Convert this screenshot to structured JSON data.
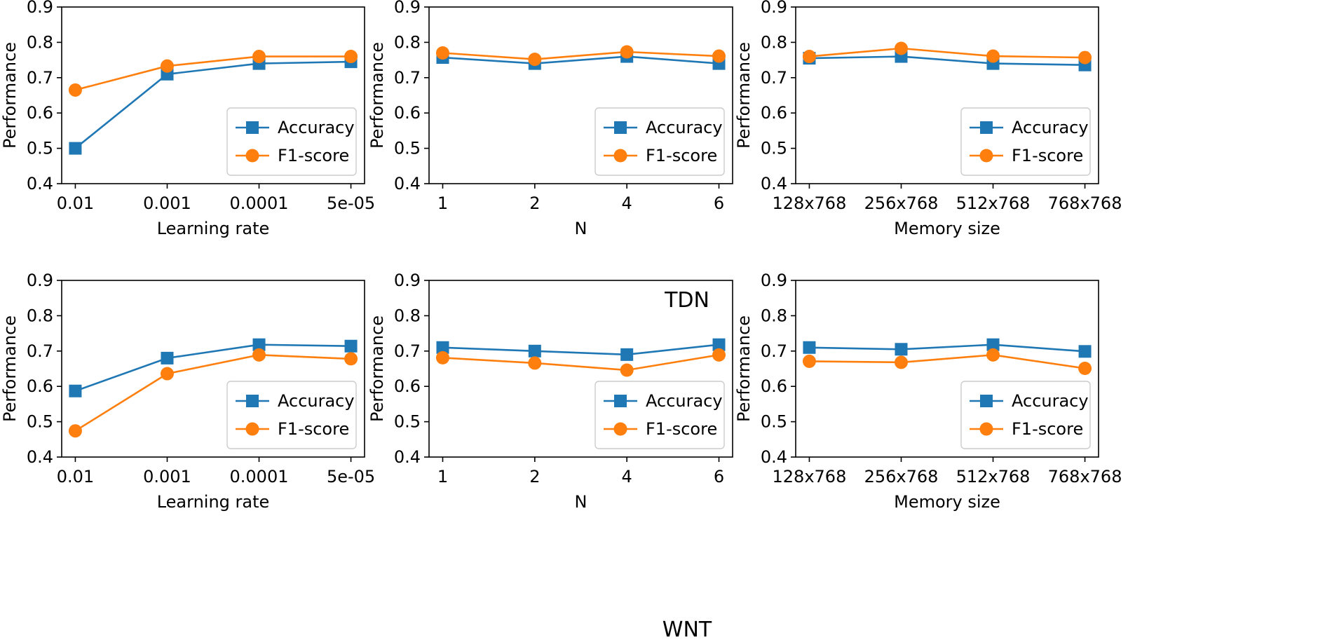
{
  "colors": {
    "accuracy": "#1f77b4",
    "f1": "#ff7f0e"
  },
  "group_labels": [
    "TDN",
    "WNT"
  ],
  "chart_data": [
    {
      "type": "line",
      "x": [
        "0.01",
        "0.001",
        "0.0001",
        "5e-05"
      ],
      "xlabel": "Learning rate",
      "ylabel": "Performance",
      "ylim": [
        0.4,
        0.9
      ],
      "yticks": [
        "0.4",
        "0.5",
        "0.6",
        "0.7",
        "0.8",
        "0.9"
      ],
      "legend": "lower-right",
      "grid": false,
      "series": [
        {
          "name": "Accuracy",
          "marker": "square",
          "values": [
            0.5,
            0.71,
            0.74,
            0.745
          ]
        },
        {
          "name": "F1-score",
          "marker": "circle",
          "values": [
            0.665,
            0.733,
            0.76,
            0.76
          ]
        }
      ]
    },
    {
      "type": "line",
      "x": [
        "1",
        "2",
        "4",
        "6"
      ],
      "xlabel": "N",
      "ylabel": "Performance",
      "ylim": [
        0.4,
        0.9
      ],
      "yticks": [
        "0.4",
        "0.5",
        "0.6",
        "0.7",
        "0.8",
        "0.9"
      ],
      "legend": "lower-right",
      "grid": false,
      "series": [
        {
          "name": "Accuracy",
          "marker": "square",
          "values": [
            0.757,
            0.74,
            0.76,
            0.74
          ]
        },
        {
          "name": "F1-score",
          "marker": "circle",
          "values": [
            0.77,
            0.752,
            0.773,
            0.761
          ]
        }
      ]
    },
    {
      "type": "line",
      "x": [
        "128x768",
        "256x768",
        "512x768",
        "768x768"
      ],
      "xlabel": "Memory size",
      "ylabel": "Performance",
      "ylim": [
        0.4,
        0.9
      ],
      "yticks": [
        "0.4",
        "0.5",
        "0.6",
        "0.7",
        "0.8",
        "0.9"
      ],
      "legend": "lower-right",
      "grid": false,
      "series": [
        {
          "name": "Accuracy",
          "marker": "square",
          "values": [
            0.755,
            0.76,
            0.74,
            0.736
          ]
        },
        {
          "name": "F1-score",
          "marker": "circle",
          "values": [
            0.76,
            0.783,
            0.761,
            0.757
          ]
        }
      ]
    },
    {
      "type": "line",
      "x": [
        "0.01",
        "0.001",
        "0.0001",
        "5e-05"
      ],
      "xlabel": "Learning rate",
      "ylabel": "Performance",
      "ylim": [
        0.4,
        0.9
      ],
      "yticks": [
        "0.4",
        "0.5",
        "0.6",
        "0.7",
        "0.8",
        "0.9"
      ],
      "legend": "lower-right",
      "grid": false,
      "series": [
        {
          "name": "Accuracy",
          "marker": "square",
          "values": [
            0.587,
            0.68,
            0.718,
            0.714
          ]
        },
        {
          "name": "F1-score",
          "marker": "circle",
          "values": [
            0.474,
            0.636,
            0.689,
            0.678
          ]
        }
      ]
    },
    {
      "type": "line",
      "x": [
        "1",
        "2",
        "4",
        "6"
      ],
      "xlabel": "N",
      "ylabel": "Performance",
      "ylim": [
        0.4,
        0.9
      ],
      "yticks": [
        "0.4",
        "0.5",
        "0.6",
        "0.7",
        "0.8",
        "0.9"
      ],
      "legend": "lower-right",
      "grid": false,
      "series": [
        {
          "name": "Accuracy",
          "marker": "square",
          "values": [
            0.71,
            0.7,
            0.69,
            0.718
          ]
        },
        {
          "name": "F1-score",
          "marker": "circle",
          "values": [
            0.681,
            0.666,
            0.646,
            0.689
          ]
        }
      ]
    },
    {
      "type": "line",
      "x": [
        "128x768",
        "256x768",
        "512x768",
        "768x768"
      ],
      "xlabel": "Memory size",
      "ylabel": "Performance",
      "ylim": [
        0.4,
        0.9
      ],
      "yticks": [
        "0.4",
        "0.5",
        "0.6",
        "0.7",
        "0.8",
        "0.9"
      ],
      "legend": "lower-right",
      "grid": false,
      "series": [
        {
          "name": "Accuracy",
          "marker": "square",
          "values": [
            0.71,
            0.705,
            0.718,
            0.699
          ]
        },
        {
          "name": "F1-score",
          "marker": "circle",
          "values": [
            0.671,
            0.668,
            0.689,
            0.651
          ]
        }
      ]
    }
  ]
}
